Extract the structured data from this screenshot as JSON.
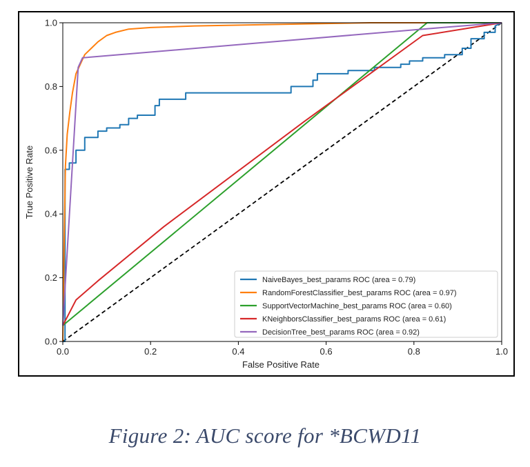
{
  "caption": "Figure 2: AUC score for *BCWD11",
  "chart_data": {
    "type": "line",
    "xlabel": "False Positive Rate",
    "ylabel": "True Positive Rate",
    "xlim": [
      0,
      1
    ],
    "ylim": [
      0,
      1
    ],
    "xticks": [
      "0.0",
      "0.2",
      "0.4",
      "0.6",
      "0.8",
      "1.0"
    ],
    "yticks": [
      "0.0",
      "0.2",
      "0.4",
      "0.6",
      "0.8",
      "1.0"
    ],
    "grid": false,
    "legend_position": "lower right",
    "diagonal": {
      "x": [
        0,
        1
      ],
      "y": [
        0,
        1
      ],
      "color": "#000000",
      "style": "dashed"
    },
    "series": [
      {
        "name": "NaiveBayes_best_params ROC (area = 0.79)",
        "color": "#1f77b4",
        "x": [
          0,
          0.005,
          0.005,
          0.015,
          0.015,
          0.03,
          0.03,
          0.05,
          0.05,
          0.08,
          0.08,
          0.1,
          0.1,
          0.13,
          0.13,
          0.15,
          0.15,
          0.17,
          0.17,
          0.21,
          0.21,
          0.22,
          0.22,
          0.28,
          0.28,
          0.52,
          0.52,
          0.57,
          0.57,
          0.58,
          0.58,
          0.65,
          0.65,
          0.71,
          0.71,
          0.77,
          0.77,
          0.79,
          0.79,
          0.82,
          0.82,
          0.87,
          0.87,
          0.91,
          0.91,
          0.93,
          0.93,
          0.96,
          0.96,
          0.985,
          0.985,
          1.0
        ],
        "y": [
          0,
          0,
          0.54,
          0.54,
          0.56,
          0.56,
          0.6,
          0.6,
          0.64,
          0.64,
          0.66,
          0.66,
          0.67,
          0.67,
          0.68,
          0.68,
          0.7,
          0.7,
          0.71,
          0.71,
          0.74,
          0.74,
          0.76,
          0.76,
          0.78,
          0.78,
          0.8,
          0.8,
          0.82,
          0.82,
          0.84,
          0.84,
          0.85,
          0.85,
          0.86,
          0.86,
          0.87,
          0.87,
          0.88,
          0.88,
          0.89,
          0.89,
          0.9,
          0.9,
          0.92,
          0.92,
          0.95,
          0.95,
          0.97,
          0.97,
          0.99,
          1.0
        ]
      },
      {
        "name": "RandomForestClassifier_best_params ROC (area = 0.97)",
        "color": "#ff7f0e",
        "x": [
          0,
          0.003,
          0.006,
          0.01,
          0.016,
          0.022,
          0.03,
          0.04,
          0.05,
          0.065,
          0.08,
          0.1,
          0.12,
          0.15,
          0.2,
          0.3,
          0.5,
          0.7,
          0.85,
          1.0
        ],
        "y": [
          0,
          0.3,
          0.55,
          0.65,
          0.72,
          0.78,
          0.84,
          0.87,
          0.9,
          0.92,
          0.94,
          0.96,
          0.97,
          0.98,
          0.985,
          0.99,
          0.995,
          1.0,
          1.0,
          1.0
        ]
      },
      {
        "name": "SupportVectorMachine_best_params ROC (area = 0.60)",
        "color": "#2ca02c",
        "x": [
          0,
          0.83,
          1.0
        ],
        "y": [
          0.05,
          1.0,
          1.0
        ]
      },
      {
        "name": "KNeighborsClassifier_best_params ROC (area = 0.61)",
        "color": "#d62728",
        "x": [
          0,
          0.03,
          0.08,
          0.23,
          0.55,
          0.82,
          1.0
        ],
        "y": [
          0.05,
          0.13,
          0.19,
          0.36,
          0.69,
          0.96,
          1.0
        ]
      },
      {
        "name": "DecisionTree_best_params ROC (area = 0.92)",
        "color": "#9467bd",
        "x": [
          0,
          0.035,
          0.045,
          0.82,
          1.0
        ],
        "y": [
          0.05,
          0.86,
          0.89,
          0.98,
          1.0
        ]
      }
    ]
  }
}
